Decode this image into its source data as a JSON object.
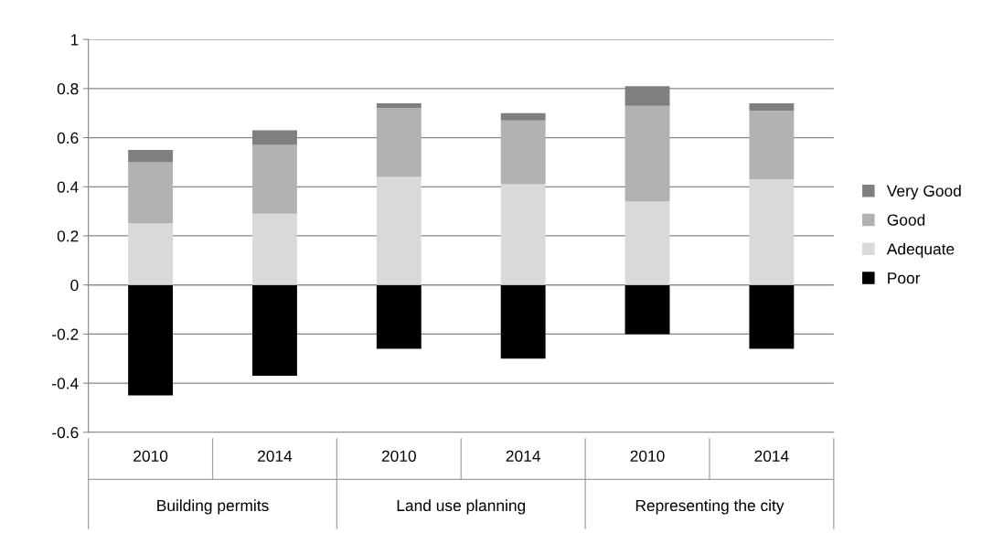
{
  "chart_data": {
    "type": "bar",
    "stacked": true,
    "categories": [
      "2010",
      "2014",
      "2010",
      "2014",
      "2010",
      "2014"
    ],
    "series": [
      {
        "name": "Poor",
        "color": "#000000",
        "values": [
          -0.45,
          -0.37,
          -0.26,
          -0.3,
          -0.2,
          -0.26
        ]
      },
      {
        "name": "Adequate",
        "color": "#d9d9d9",
        "values": [
          0.25,
          0.29,
          0.44,
          0.41,
          0.34,
          0.43
        ]
      },
      {
        "name": "Good",
        "color": "#b2b2b2",
        "values": [
          0.25,
          0.28,
          0.28,
          0.26,
          0.39,
          0.28
        ]
      },
      {
        "name": "Very Good",
        "color": "#7f7f7f",
        "values": [
          0.05,
          0.06,
          0.02,
          0.03,
          0.08,
          0.03
        ]
      }
    ],
    "annotations": [
      "Building permits",
      "Land use planning",
      "Representing the city"
    ],
    "ylim": [
      -0.6,
      1
    ],
    "yticks": [
      -0.6,
      -0.4,
      -0.2,
      0,
      0.2,
      0.4,
      0.6,
      0.8,
      1
    ],
    "grid": "y",
    "legend": "right"
  }
}
